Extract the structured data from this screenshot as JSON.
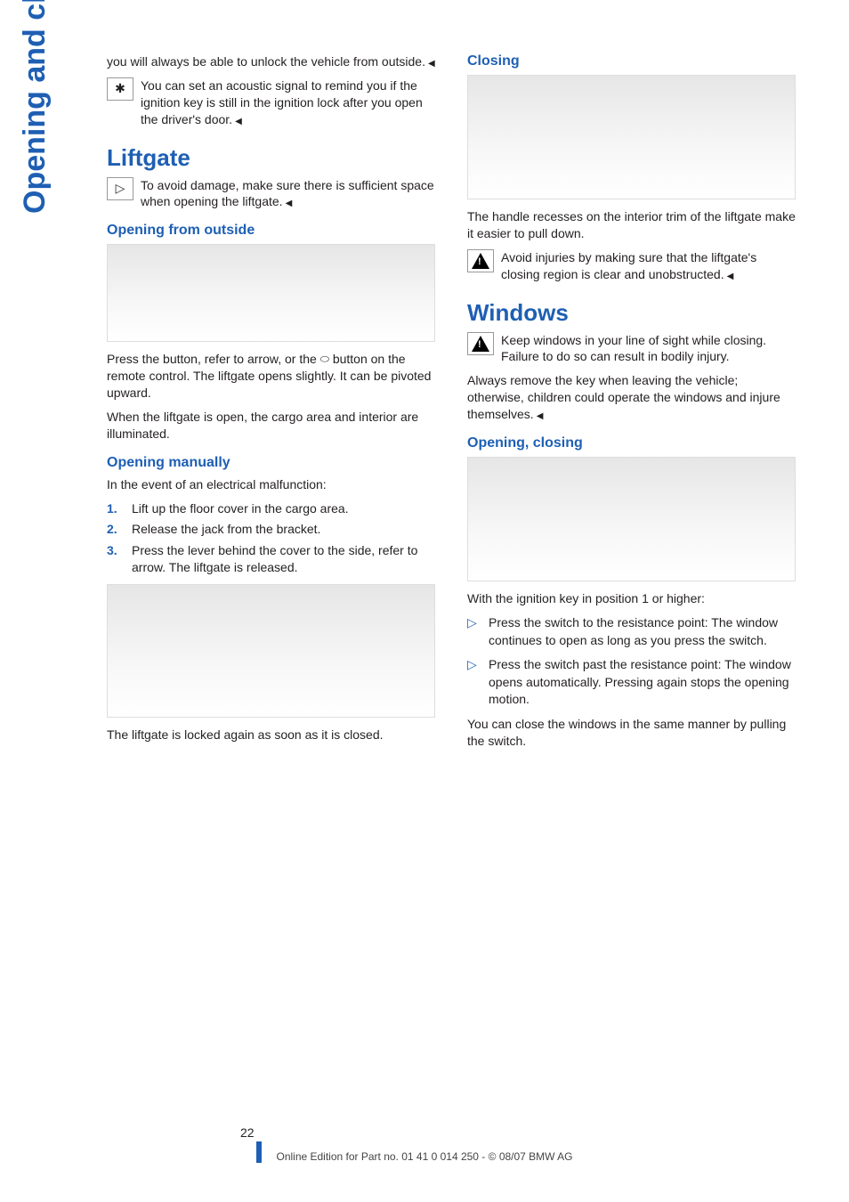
{
  "side_tab": "Opening and closing",
  "page_number": "22",
  "footer": "Online Edition for Part no. 01 41 0 014 250 - © 08/07 BMW AG",
  "left": {
    "intro1": "you will always be able to unlock the vehicle from outside.",
    "tip1": "You can set an acoustic signal to remind you if the ignition key is still in the ignition lock after you open the driver's door.",
    "liftgate_title": "Liftgate",
    "liftgate_warn": "To avoid damage, make sure there is sufficient space when opening the liftgate.",
    "open_outside_h": "Opening from outside",
    "open_outside_p1": "Press the button, refer to arrow, or the ",
    "open_outside_p1b": " button on the remote control. The liftgate opens slightly. It can be pivoted upward.",
    "open_outside_p2": "When the liftgate is open, the cargo area and interior are illuminated.",
    "open_manual_h": "Opening manually",
    "open_manual_intro": "In the event of an electrical malfunction:",
    "steps": {
      "s1": "Lift up the floor cover in the cargo area.",
      "s2": "Release the jack from the bracket.",
      "s3": "Press the lever behind the cover to the side, refer to arrow. The liftgate is released."
    },
    "locked_again": "The liftgate is locked again as soon as it is closed."
  },
  "right": {
    "closing_h": "Closing",
    "closing_p1": "The handle recesses on the interior trim of the liftgate make it easier to pull down.",
    "closing_warn": "Avoid injuries by making sure that the liftgate's closing region is clear and unobstructed.",
    "windows_title": "Windows",
    "windows_warn": "Keep windows in your line of sight while closing. Failure to do so can result in bodily injury.",
    "windows_warn2": "Always remove the key when leaving the vehicle; otherwise, children could operate the windows and injure themselves.",
    "open_close_h": "Opening, closing",
    "open_close_intro": "With the ignition key in position 1 or higher:",
    "bullets": {
      "b1": "Press the switch to the resistance point: The window continues to open as long as you press the switch.",
      "b2": "Press the switch past the resistance point: The window opens automatically. Pressing again stops the opening motion."
    },
    "open_close_p2": "You can close the windows in the same manner by pulling the switch."
  }
}
